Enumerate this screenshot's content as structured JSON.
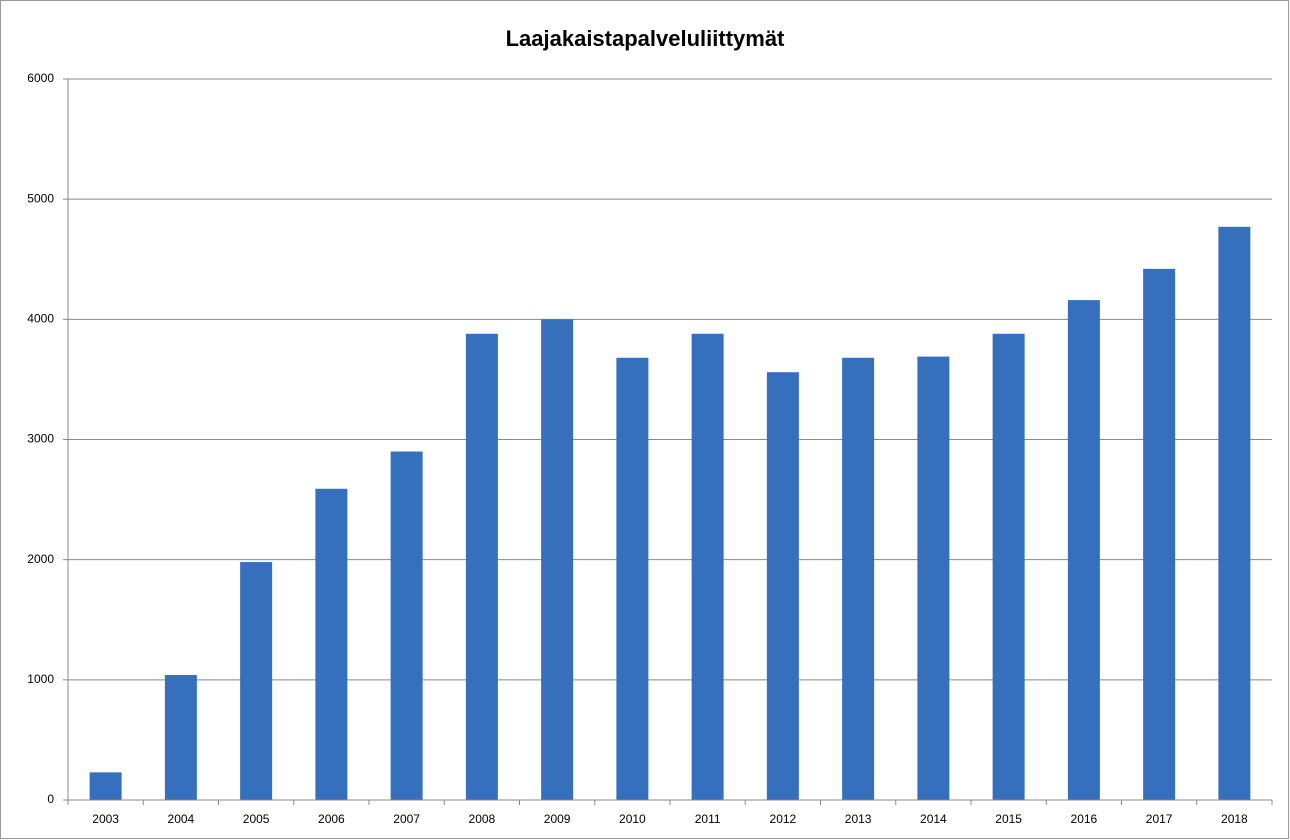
{
  "chart_data": {
    "type": "bar",
    "title": "Laajakaistapalveluliittymät",
    "categories": [
      "2003",
      "2004",
      "2005",
      "2006",
      "2007",
      "2008",
      "2009",
      "2010",
      "2011",
      "2012",
      "2013",
      "2014",
      "2015",
      "2016",
      "2017",
      "2018"
    ],
    "values": [
      230,
      1040,
      1980,
      2590,
      2900,
      3880,
      4000,
      3680,
      3880,
      3560,
      3680,
      3690,
      3880,
      4160,
      4420,
      4770
    ],
    "color": "#3670bd",
    "ylim": [
      0,
      6000
    ],
    "yticks": [
      0,
      1000,
      2000,
      3000,
      4000,
      5000,
      6000
    ],
    "grid": true
  }
}
